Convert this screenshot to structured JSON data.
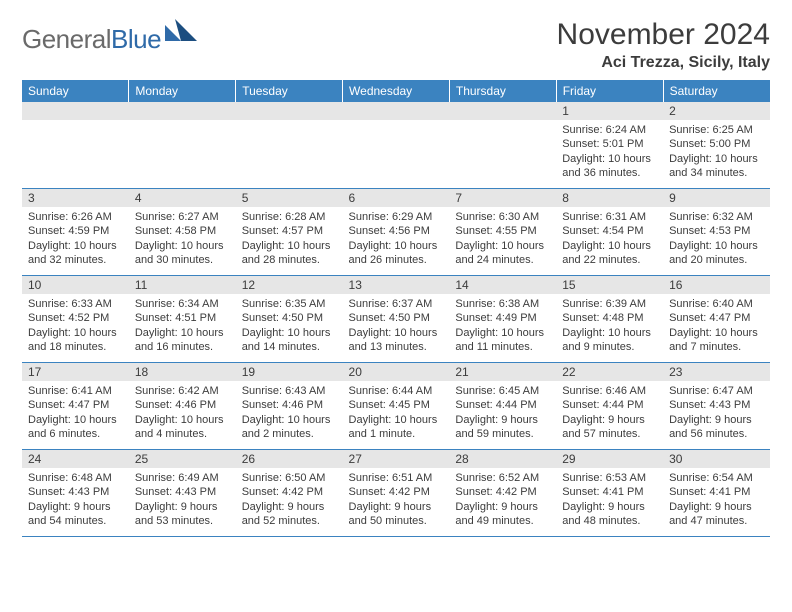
{
  "logo": {
    "text1": "General",
    "text2": "Blue"
  },
  "title": "November 2024",
  "location": "Aci Trezza, Sicily, Italy",
  "colors": {
    "header_bg": "#3b83c0",
    "header_fg": "#ffffff",
    "day_strip_bg": "#e6e6e6",
    "cell_border": "#3b83c0",
    "logo_gray": "#6a6a6a",
    "logo_blue": "#2f6aa8",
    "text": "#3c3c3c",
    "page_bg": "#ffffff"
  },
  "typography": {
    "title_pt": 30,
    "location_pt": 16,
    "header_pt": 12,
    "daynum_pt": 12,
    "body_pt": 11,
    "logo_pt": 26
  },
  "weekdays": [
    "Sunday",
    "Monday",
    "Tuesday",
    "Wednesday",
    "Thursday",
    "Friday",
    "Saturday"
  ],
  "weeks": [
    [
      null,
      null,
      null,
      null,
      null,
      {
        "n": "1",
        "sr": "Sunrise: 6:24 AM",
        "ss": "Sunset: 5:01 PM",
        "dl": "Daylight: 10 hours and 36 minutes."
      },
      {
        "n": "2",
        "sr": "Sunrise: 6:25 AM",
        "ss": "Sunset: 5:00 PM",
        "dl": "Daylight: 10 hours and 34 minutes."
      }
    ],
    [
      {
        "n": "3",
        "sr": "Sunrise: 6:26 AM",
        "ss": "Sunset: 4:59 PM",
        "dl": "Daylight: 10 hours and 32 minutes."
      },
      {
        "n": "4",
        "sr": "Sunrise: 6:27 AM",
        "ss": "Sunset: 4:58 PM",
        "dl": "Daylight: 10 hours and 30 minutes."
      },
      {
        "n": "5",
        "sr": "Sunrise: 6:28 AM",
        "ss": "Sunset: 4:57 PM",
        "dl": "Daylight: 10 hours and 28 minutes."
      },
      {
        "n": "6",
        "sr": "Sunrise: 6:29 AM",
        "ss": "Sunset: 4:56 PM",
        "dl": "Daylight: 10 hours and 26 minutes."
      },
      {
        "n": "7",
        "sr": "Sunrise: 6:30 AM",
        "ss": "Sunset: 4:55 PM",
        "dl": "Daylight: 10 hours and 24 minutes."
      },
      {
        "n": "8",
        "sr": "Sunrise: 6:31 AM",
        "ss": "Sunset: 4:54 PM",
        "dl": "Daylight: 10 hours and 22 minutes."
      },
      {
        "n": "9",
        "sr": "Sunrise: 6:32 AM",
        "ss": "Sunset: 4:53 PM",
        "dl": "Daylight: 10 hours and 20 minutes."
      }
    ],
    [
      {
        "n": "10",
        "sr": "Sunrise: 6:33 AM",
        "ss": "Sunset: 4:52 PM",
        "dl": "Daylight: 10 hours and 18 minutes."
      },
      {
        "n": "11",
        "sr": "Sunrise: 6:34 AM",
        "ss": "Sunset: 4:51 PM",
        "dl": "Daylight: 10 hours and 16 minutes."
      },
      {
        "n": "12",
        "sr": "Sunrise: 6:35 AM",
        "ss": "Sunset: 4:50 PM",
        "dl": "Daylight: 10 hours and 14 minutes."
      },
      {
        "n": "13",
        "sr": "Sunrise: 6:37 AM",
        "ss": "Sunset: 4:50 PM",
        "dl": "Daylight: 10 hours and 13 minutes."
      },
      {
        "n": "14",
        "sr": "Sunrise: 6:38 AM",
        "ss": "Sunset: 4:49 PM",
        "dl": "Daylight: 10 hours and 11 minutes."
      },
      {
        "n": "15",
        "sr": "Sunrise: 6:39 AM",
        "ss": "Sunset: 4:48 PM",
        "dl": "Daylight: 10 hours and 9 minutes."
      },
      {
        "n": "16",
        "sr": "Sunrise: 6:40 AM",
        "ss": "Sunset: 4:47 PM",
        "dl": "Daylight: 10 hours and 7 minutes."
      }
    ],
    [
      {
        "n": "17",
        "sr": "Sunrise: 6:41 AM",
        "ss": "Sunset: 4:47 PM",
        "dl": "Daylight: 10 hours and 6 minutes."
      },
      {
        "n": "18",
        "sr": "Sunrise: 6:42 AM",
        "ss": "Sunset: 4:46 PM",
        "dl": "Daylight: 10 hours and 4 minutes."
      },
      {
        "n": "19",
        "sr": "Sunrise: 6:43 AM",
        "ss": "Sunset: 4:46 PM",
        "dl": "Daylight: 10 hours and 2 minutes."
      },
      {
        "n": "20",
        "sr": "Sunrise: 6:44 AM",
        "ss": "Sunset: 4:45 PM",
        "dl": "Daylight: 10 hours and 1 minute."
      },
      {
        "n": "21",
        "sr": "Sunrise: 6:45 AM",
        "ss": "Sunset: 4:44 PM",
        "dl": "Daylight: 9 hours and 59 minutes."
      },
      {
        "n": "22",
        "sr": "Sunrise: 6:46 AM",
        "ss": "Sunset: 4:44 PM",
        "dl": "Daylight: 9 hours and 57 minutes."
      },
      {
        "n": "23",
        "sr": "Sunrise: 6:47 AM",
        "ss": "Sunset: 4:43 PM",
        "dl": "Daylight: 9 hours and 56 minutes."
      }
    ],
    [
      {
        "n": "24",
        "sr": "Sunrise: 6:48 AM",
        "ss": "Sunset: 4:43 PM",
        "dl": "Daylight: 9 hours and 54 minutes."
      },
      {
        "n": "25",
        "sr": "Sunrise: 6:49 AM",
        "ss": "Sunset: 4:43 PM",
        "dl": "Daylight: 9 hours and 53 minutes."
      },
      {
        "n": "26",
        "sr": "Sunrise: 6:50 AM",
        "ss": "Sunset: 4:42 PM",
        "dl": "Daylight: 9 hours and 52 minutes."
      },
      {
        "n": "27",
        "sr": "Sunrise: 6:51 AM",
        "ss": "Sunset: 4:42 PM",
        "dl": "Daylight: 9 hours and 50 minutes."
      },
      {
        "n": "28",
        "sr": "Sunrise: 6:52 AM",
        "ss": "Sunset: 4:42 PM",
        "dl": "Daylight: 9 hours and 49 minutes."
      },
      {
        "n": "29",
        "sr": "Sunrise: 6:53 AM",
        "ss": "Sunset: 4:41 PM",
        "dl": "Daylight: 9 hours and 48 minutes."
      },
      {
        "n": "30",
        "sr": "Sunrise: 6:54 AM",
        "ss": "Sunset: 4:41 PM",
        "dl": "Daylight: 9 hours and 47 minutes."
      }
    ]
  ]
}
